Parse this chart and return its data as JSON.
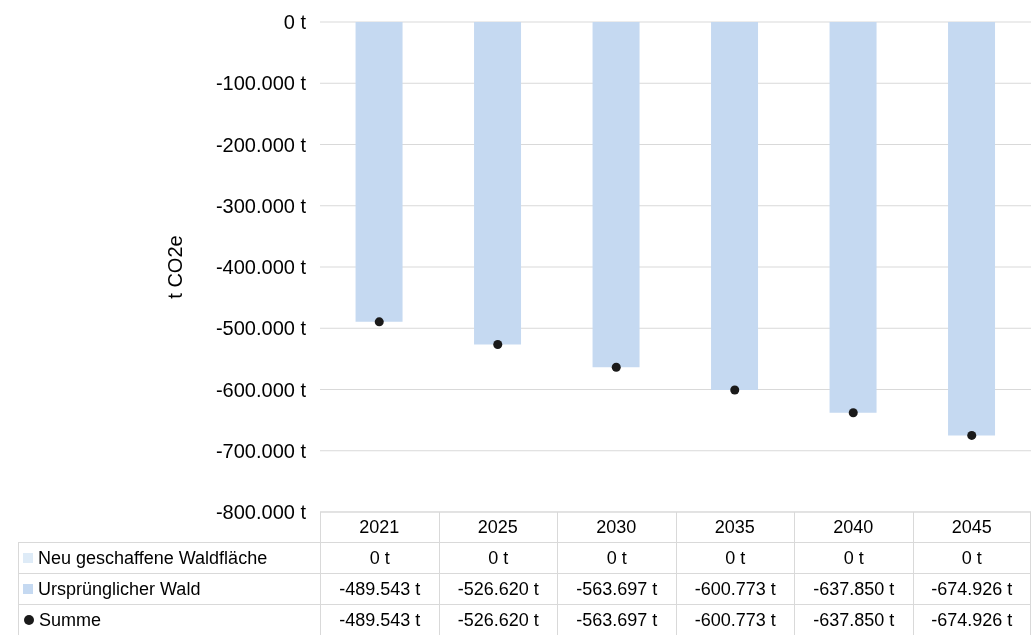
{
  "chart_data": {
    "type": "bar",
    "stacked": true,
    "categories": [
      "2021",
      "2025",
      "2030",
      "2035",
      "2040",
      "2045"
    ],
    "ylabel": "t CO2e",
    "series": [
      {
        "name": "Neu geschaffene Waldfläche",
        "color": "#deebf7",
        "values": [
          0,
          0,
          0,
          0,
          0,
          0
        ],
        "value_labels": [
          "0 t",
          "0 t",
          "0 t",
          "0 t",
          "0 t",
          "0 t"
        ]
      },
      {
        "name": "Ursprünglicher Wald",
        "color": "#c5d9f1",
        "values": [
          -489543,
          -526620,
          -563697,
          -600773,
          -637850,
          -674926
        ],
        "value_labels": [
          "-489.543 t",
          "-526.620 t",
          "-563.697 t",
          "-600.773 t",
          "-637.850 t",
          "-674.926 t"
        ]
      },
      {
        "name": "Summe",
        "type": "scatter",
        "marker": "circle",
        "color": "#1a1a1a",
        "values": [
          -489543,
          -526620,
          -563697,
          -600773,
          -637850,
          -674926
        ],
        "value_labels": [
          "-489.543 t",
          "-526.620 t",
          "-563.697 t",
          "-600.773 t",
          "-637.850 t",
          "-674.926 t"
        ]
      }
    ],
    "ylim": [
      -800000,
      0
    ],
    "yticks": [
      {
        "value": -800000,
        "label": "-800.000 t"
      },
      {
        "value": -700000,
        "label": "-700.000 t"
      },
      {
        "value": -600000,
        "label": "-600.000 t"
      },
      {
        "value": -500000,
        "label": "-500.000 t"
      },
      {
        "value": -400000,
        "label": "-400.000 t"
      },
      {
        "value": -300000,
        "label": "-300.000 t"
      },
      {
        "value": -200000,
        "label": "-200.000 t"
      },
      {
        "value": -100000,
        "label": "-100.000 t"
      },
      {
        "value": 0,
        "label": "0 t"
      }
    ],
    "grid": "y",
    "legend": "bottom"
  }
}
